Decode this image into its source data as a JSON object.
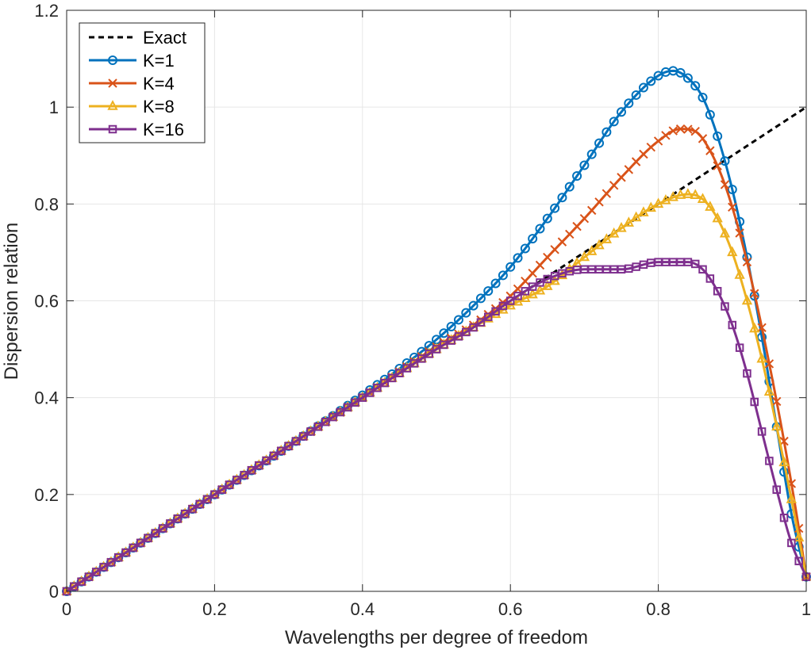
{
  "chart_data": {
    "type": "line",
    "title": "",
    "xlabel": "Wavelengths per degree of freedom",
    "ylabel": "Dispersion relation",
    "xlim": [
      0,
      1
    ],
    "ylim": [
      0,
      1.2
    ],
    "grid": true,
    "legend_position": "top-left",
    "x_ticks": [
      0,
      0.2,
      0.4,
      0.6,
      0.8,
      1
    ],
    "x_tick_labels": [
      "0",
      "0.2",
      "0.4",
      "0.6",
      "0.8",
      "1"
    ],
    "y_ticks": [
      0,
      0.2,
      0.4,
      0.6,
      0.8,
      1,
      1.2
    ],
    "y_tick_labels": [
      "0",
      "0.2",
      "0.4",
      "0.6",
      "0.8",
      "1",
      "1.2"
    ],
    "colors": {
      "exact": "#000000",
      "k1": "#0072BD",
      "k4": "#D95319",
      "k8": "#EDB120",
      "k16": "#7E2F8E"
    },
    "series": [
      {
        "name": "Exact",
        "style": "dashed",
        "marker": "none",
        "color": "#000000",
        "x": [
          0,
          1
        ],
        "y": [
          0,
          1
        ]
      },
      {
        "name": "K=1",
        "style": "solid",
        "marker": "circle",
        "color": "#0072BD",
        "x": [
          0,
          0.1,
          0.2,
          0.3,
          0.4,
          0.45,
          0.5,
          0.55,
          0.6,
          0.65,
          0.7,
          0.75,
          0.8,
          0.82,
          0.84,
          0.86,
          0.88,
          0.9,
          0.92,
          0.94,
          0.96,
          0.98,
          1.0
        ],
        "y": [
          0,
          0.1,
          0.2,
          0.3,
          0.405,
          0.46,
          0.52,
          0.59,
          0.67,
          0.77,
          0.88,
          0.99,
          1.065,
          1.075,
          1.06,
          1.02,
          0.94,
          0.83,
          0.69,
          0.525,
          0.34,
          0.16,
          0.03
        ]
      },
      {
        "name": "K=4",
        "style": "solid",
        "marker": "x",
        "color": "#D95319",
        "x": [
          0,
          0.1,
          0.2,
          0.3,
          0.4,
          0.5,
          0.55,
          0.6,
          0.65,
          0.7,
          0.75,
          0.8,
          0.83,
          0.85,
          0.87,
          0.89,
          0.91,
          0.93,
          0.95,
          0.97,
          0.99,
          1.0
        ],
        "y": [
          0,
          0.1,
          0.2,
          0.3,
          0.4,
          0.505,
          0.55,
          0.61,
          0.69,
          0.77,
          0.855,
          0.93,
          0.955,
          0.95,
          0.91,
          0.84,
          0.74,
          0.615,
          0.47,
          0.31,
          0.13,
          0.03
        ]
      },
      {
        "name": "K=8",
        "style": "solid",
        "marker": "triangle",
        "color": "#EDB120",
        "x": [
          0,
          0.1,
          0.2,
          0.3,
          0.4,
          0.5,
          0.55,
          0.6,
          0.65,
          0.7,
          0.75,
          0.8,
          0.84,
          0.86,
          0.88,
          0.9,
          0.92,
          0.94,
          0.96,
          0.98,
          1.0
        ],
        "y": [
          0,
          0.1,
          0.2,
          0.3,
          0.4,
          0.5,
          0.545,
          0.59,
          0.63,
          0.69,
          0.75,
          0.8,
          0.82,
          0.81,
          0.77,
          0.7,
          0.6,
          0.48,
          0.34,
          0.19,
          0.03
        ]
      },
      {
        "name": "K=16",
        "style": "solid",
        "marker": "square",
        "color": "#7E2F8E",
        "x": [
          0,
          0.1,
          0.2,
          0.3,
          0.4,
          0.5,
          0.55,
          0.6,
          0.65,
          0.7,
          0.75,
          0.8,
          0.84,
          0.86,
          0.88,
          0.9,
          0.92,
          0.94,
          0.96,
          0.98,
          1.0
        ],
        "y": [
          0,
          0.1,
          0.2,
          0.3,
          0.4,
          0.5,
          0.545,
          0.6,
          0.645,
          0.665,
          0.665,
          0.68,
          0.68,
          0.665,
          0.62,
          0.55,
          0.45,
          0.33,
          0.21,
          0.1,
          0.03
        ]
      }
    ]
  }
}
